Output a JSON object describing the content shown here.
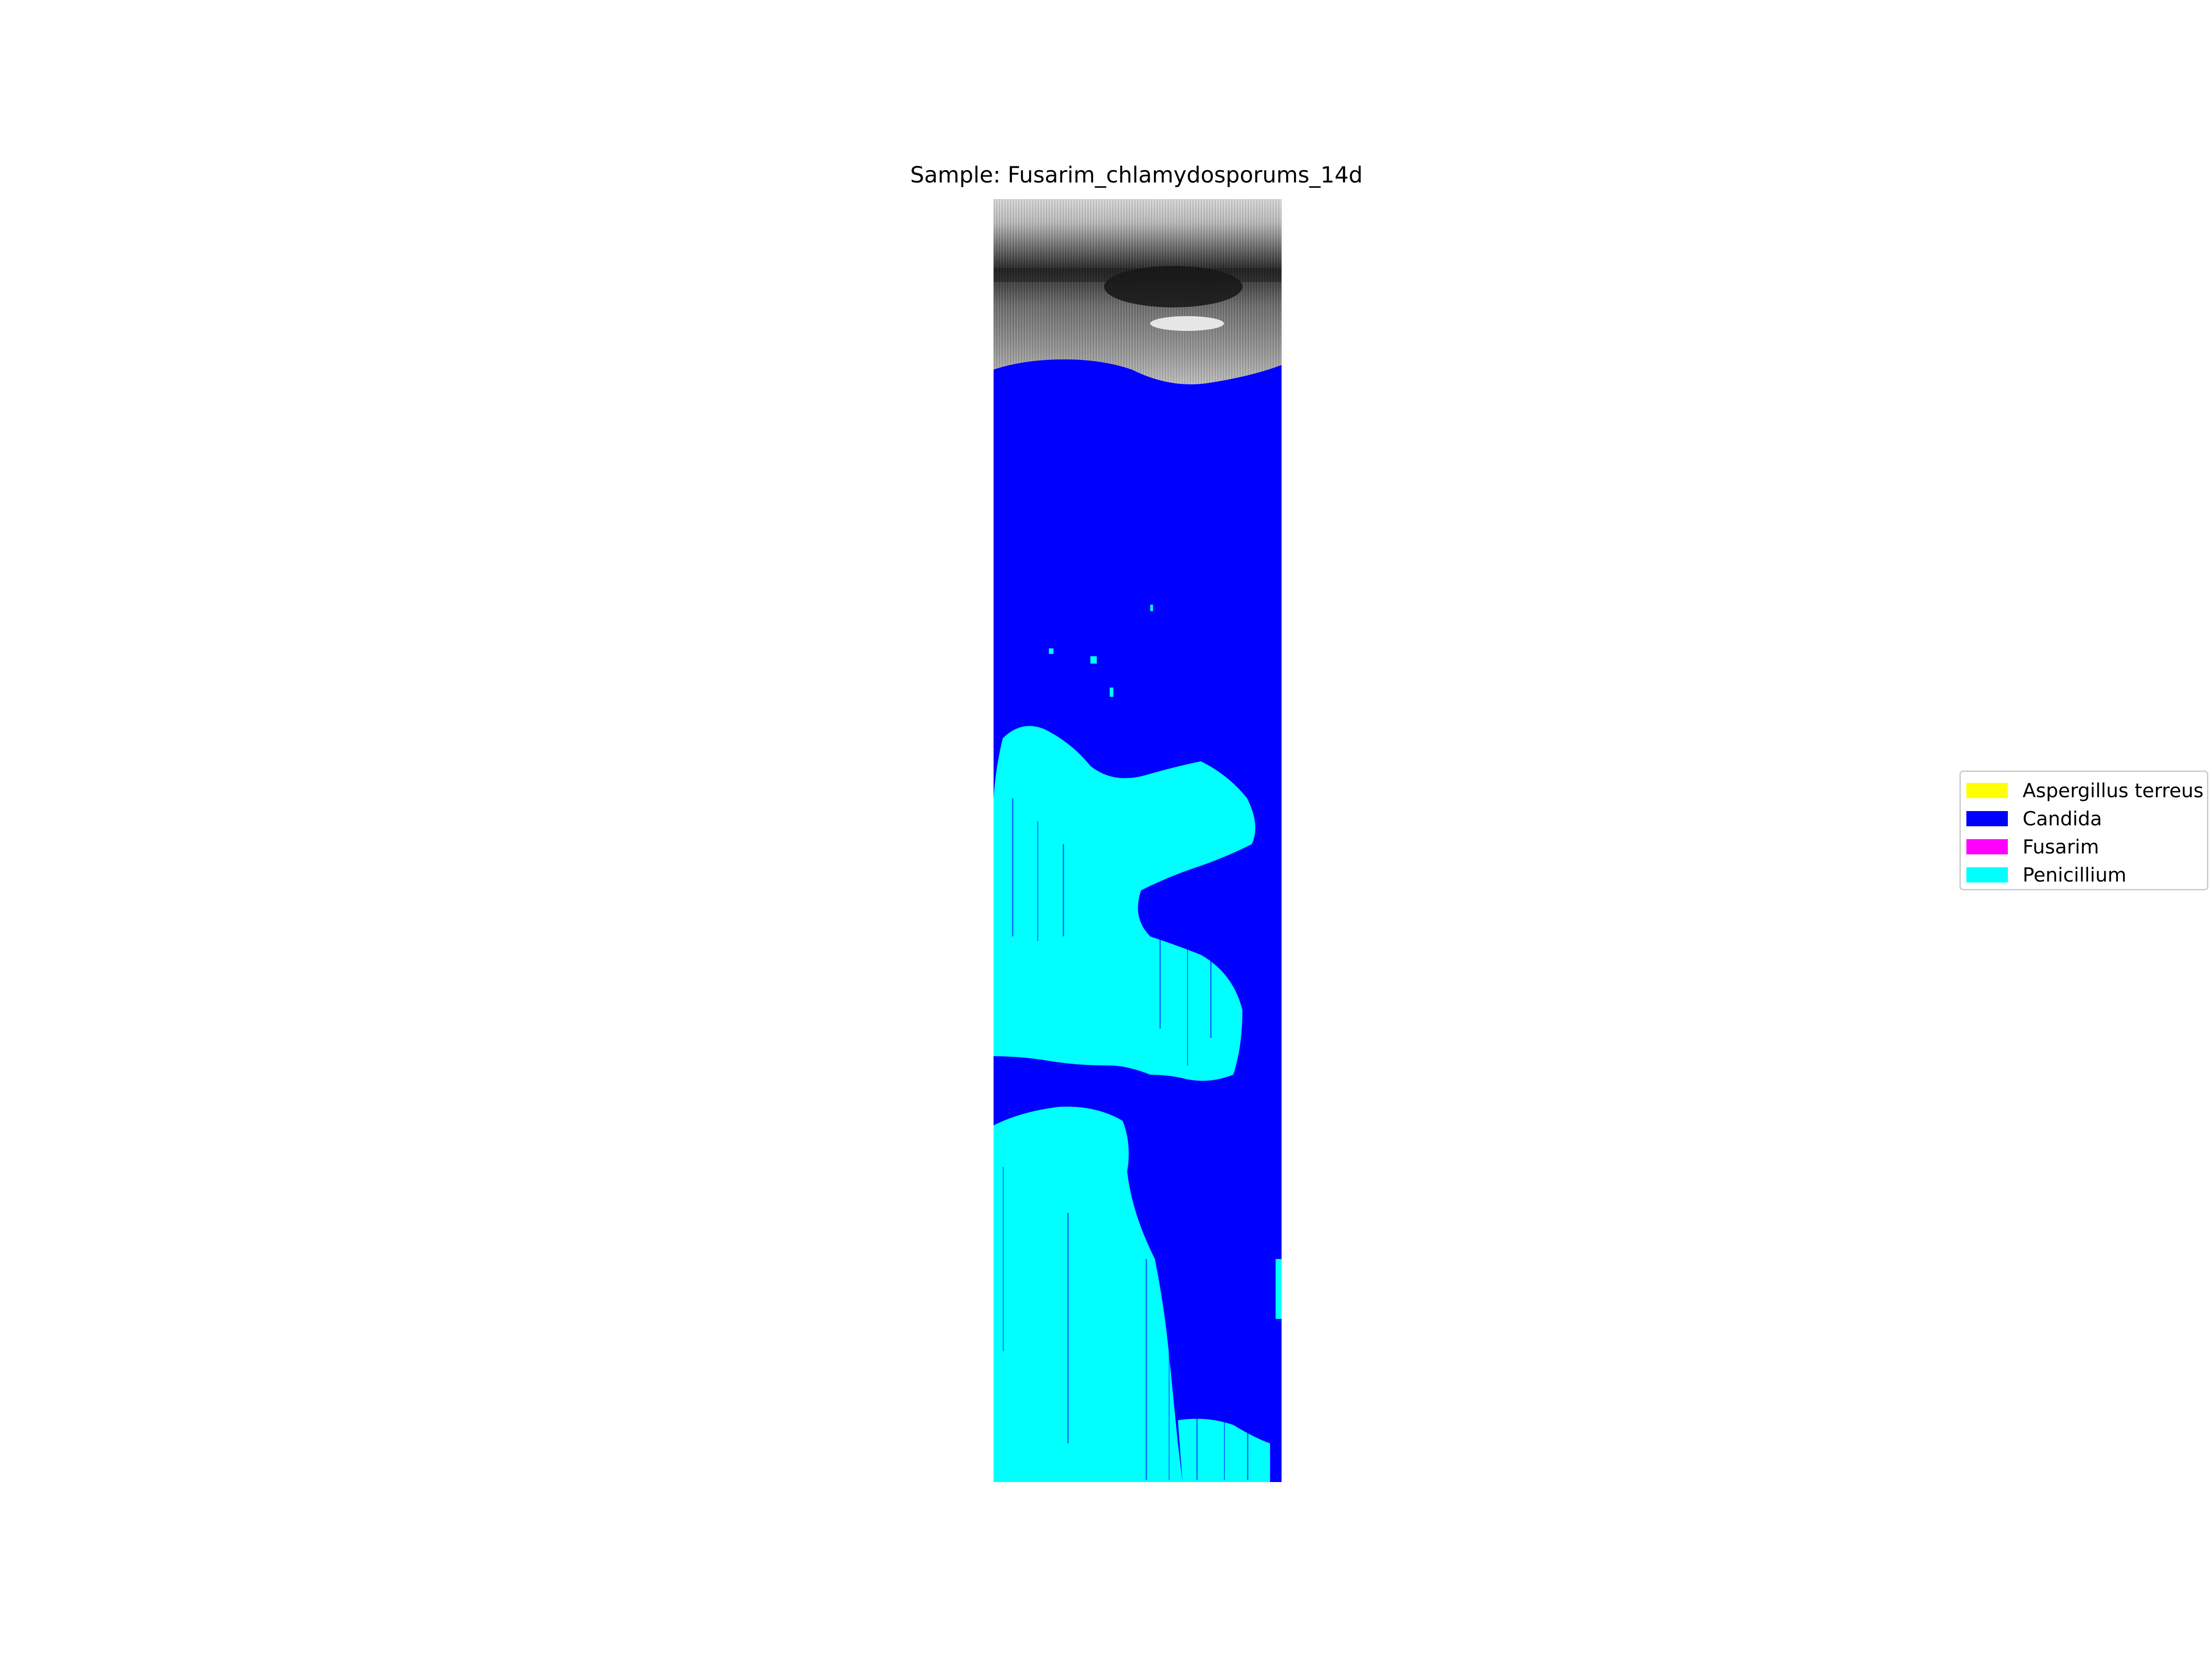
{
  "title": "Sample: Fusarim_chlamydosporums_14d",
  "chart_data": {
    "type": "heatmap",
    "title": "Sample: Fusarim_chlamydosporums_14d",
    "xlabel": "",
    "ylabel": "",
    "axes_visible": false,
    "grid": false,
    "legend_placement": "right",
    "background_layer": "grayscale image",
    "classes": [
      {
        "name": "Aspergillus terreus",
        "color": "#ffff00"
      },
      {
        "name": "Candida",
        "color": "#0000ff"
      },
      {
        "name": "Fusarim",
        "color": "#ff00ff"
      },
      {
        "name": "Penicillium",
        "color": "#00ffff"
      }
    ]
  },
  "legend": {
    "items": [
      {
        "label": "Aspergillus terreus",
        "color": "#ffff00"
      },
      {
        "label": "Candida",
        "color": "#0000ff"
      },
      {
        "label": "Fusarim",
        "color": "#ff00ff"
      },
      {
        "label": "Penicillium",
        "color": "#00ffff"
      }
    ]
  }
}
